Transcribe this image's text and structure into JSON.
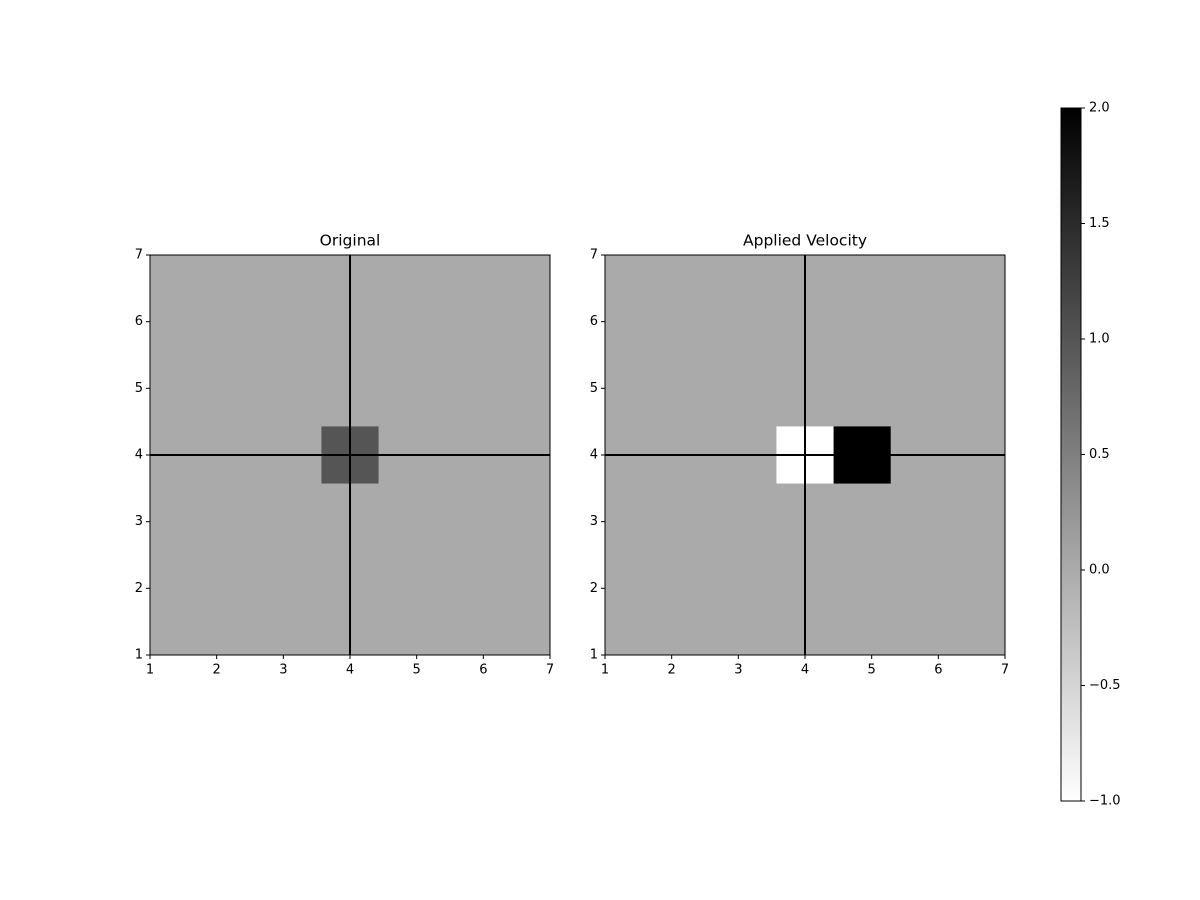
{
  "chart_data": [
    {
      "type": "heatmap",
      "title": "Original",
      "z": [
        [
          0,
          0,
          0,
          0,
          0,
          0,
          0
        ],
        [
          0,
          0,
          0,
          0,
          0,
          0,
          0
        ],
        [
          0,
          0,
          0,
          0,
          0,
          0,
          0
        ],
        [
          0,
          0,
          0,
          1,
          0,
          0,
          0
        ],
        [
          0,
          0,
          0,
          0,
          0,
          0,
          0
        ],
        [
          0,
          0,
          0,
          0,
          0,
          0,
          0
        ],
        [
          0,
          0,
          0,
          0,
          0,
          0,
          0
        ]
      ],
      "xlim": [
        1,
        7
      ],
      "ylim": [
        1,
        7
      ],
      "xticks": [
        1,
        2,
        3,
        4,
        5,
        6,
        7
      ],
      "yticks": [
        1,
        2,
        3,
        4,
        5,
        6,
        7
      ],
      "vline": 4,
      "hline": 4,
      "line_color": "#000000"
    },
    {
      "type": "heatmap",
      "title": "Applied Velocity",
      "z": [
        [
          0,
          0,
          0,
          0,
          0,
          0,
          0
        ],
        [
          0,
          0,
          0,
          0,
          0,
          0,
          0
        ],
        [
          0,
          0,
          0,
          0,
          0,
          0,
          0
        ],
        [
          0,
          0,
          0,
          -1,
          2,
          0,
          0
        ],
        [
          0,
          0,
          0,
          0,
          0,
          0,
          0
        ],
        [
          0,
          0,
          0,
          0,
          0,
          0,
          0
        ],
        [
          0,
          0,
          0,
          0,
          0,
          0,
          0
        ]
      ],
      "xlim": [
        1,
        7
      ],
      "ylim": [
        1,
        7
      ],
      "xticks": [
        1,
        2,
        3,
        4,
        5,
        6,
        7
      ],
      "yticks": [
        1,
        2,
        3,
        4,
        5,
        6,
        7
      ],
      "vline": 4,
      "hline": 4,
      "line_color": "#000000"
    }
  ],
  "colorbar": {
    "cmap": "gray_r",
    "clim": [
      -1,
      2
    ],
    "ticks": [
      {
        "value": -1,
        "label": "−1.0"
      },
      {
        "value": -0.5,
        "label": "−0.5"
      },
      {
        "value": 0,
        "label": "0.0"
      },
      0.5,
      {
        "value": 1,
        "label": "1.0"
      },
      1.5,
      {
        "value": 2,
        "label": "2.0"
      }
    ]
  }
}
